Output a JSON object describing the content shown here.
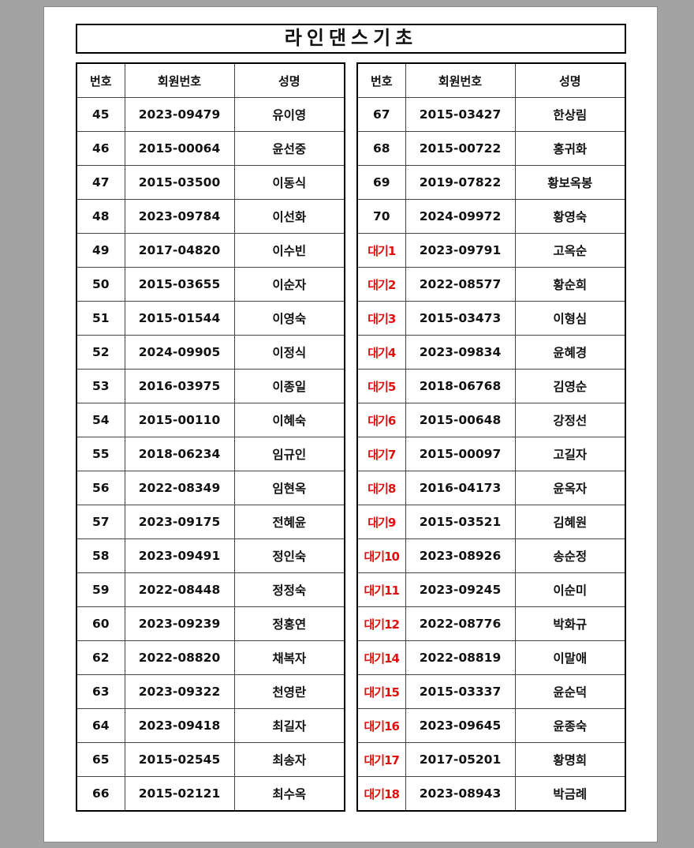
{
  "title": "라인댄스기초",
  "headers": [
    "번호",
    "회원번호",
    "성명"
  ],
  "colors": {
    "waitlist": "#e01010",
    "text": "#111111"
  },
  "left_table": [
    {
      "no": "45",
      "member_id": "2023-09479",
      "name": "유이영"
    },
    {
      "no": "46",
      "member_id": "2015-00064",
      "name": "윤선중"
    },
    {
      "no": "47",
      "member_id": "2015-03500",
      "name": "이동식"
    },
    {
      "no": "48",
      "member_id": "2023-09784",
      "name": "이선화"
    },
    {
      "no": "49",
      "member_id": "2017-04820",
      "name": "이수빈"
    },
    {
      "no": "50",
      "member_id": "2015-03655",
      "name": "이순자"
    },
    {
      "no": "51",
      "member_id": "2015-01544",
      "name": "이영숙"
    },
    {
      "no": "52",
      "member_id": "2024-09905",
      "name": "이정식"
    },
    {
      "no": "53",
      "member_id": "2016-03975",
      "name": "이종일"
    },
    {
      "no": "54",
      "member_id": "2015-00110",
      "name": "이혜숙"
    },
    {
      "no": "55",
      "member_id": "2018-06234",
      "name": "임규인"
    },
    {
      "no": "56",
      "member_id": "2022-08349",
      "name": "임현옥"
    },
    {
      "no": "57",
      "member_id": "2023-09175",
      "name": "전혜윤"
    },
    {
      "no": "58",
      "member_id": "2023-09491",
      "name": "정인숙"
    },
    {
      "no": "59",
      "member_id": "2022-08448",
      "name": "정정숙"
    },
    {
      "no": "60",
      "member_id": "2023-09239",
      "name": "정홍연"
    },
    {
      "no": "62",
      "member_id": "2022-08820",
      "name": "채복자"
    },
    {
      "no": "63",
      "member_id": "2023-09322",
      "name": "천영란"
    },
    {
      "no": "64",
      "member_id": "2023-09418",
      "name": "최길자"
    },
    {
      "no": "65",
      "member_id": "2015-02545",
      "name": "최송자"
    },
    {
      "no": "66",
      "member_id": "2015-02121",
      "name": "최수옥"
    }
  ],
  "right_table": [
    {
      "no": "67",
      "member_id": "2015-03427",
      "name": "한상림",
      "waitlist": false
    },
    {
      "no": "68",
      "member_id": "2015-00722",
      "name": "홍귀화",
      "waitlist": false
    },
    {
      "no": "69",
      "member_id": "2019-07822",
      "name": "황보옥봉",
      "waitlist": false
    },
    {
      "no": "70",
      "member_id": "2024-09972",
      "name": "황영숙",
      "waitlist": false
    },
    {
      "no": "대기1",
      "member_id": "2023-09791",
      "name": "고옥순",
      "waitlist": true
    },
    {
      "no": "대기2",
      "member_id": "2022-08577",
      "name": "황순희",
      "waitlist": true
    },
    {
      "no": "대기3",
      "member_id": "2015-03473",
      "name": "이형심",
      "waitlist": true
    },
    {
      "no": "대기4",
      "member_id": "2023-09834",
      "name": "윤혜경",
      "waitlist": true
    },
    {
      "no": "대기5",
      "member_id": "2018-06768",
      "name": "김영순",
      "waitlist": true
    },
    {
      "no": "대기6",
      "member_id": "2015-00648",
      "name": "강정선",
      "waitlist": true
    },
    {
      "no": "대기7",
      "member_id": "2015-00097",
      "name": "고길자",
      "waitlist": true
    },
    {
      "no": "대기8",
      "member_id": "2016-04173",
      "name": "윤옥자",
      "waitlist": true
    },
    {
      "no": "대기9",
      "member_id": "2015-03521",
      "name": "김혜원",
      "waitlist": true
    },
    {
      "no": "대기10",
      "member_id": "2023-08926",
      "name": "송순정",
      "waitlist": true
    },
    {
      "no": "대기11",
      "member_id": "2023-09245",
      "name": "이순미",
      "waitlist": true
    },
    {
      "no": "대기12",
      "member_id": "2022-08776",
      "name": "박화규",
      "waitlist": true
    },
    {
      "no": "대기14",
      "member_id": "2022-08819",
      "name": "이말애",
      "waitlist": true
    },
    {
      "no": "대기15",
      "member_id": "2015-03337",
      "name": "윤순덕",
      "waitlist": true
    },
    {
      "no": "대기16",
      "member_id": "2023-09645",
      "name": "윤종숙",
      "waitlist": true
    },
    {
      "no": "대기17",
      "member_id": "2017-05201",
      "name": "황명희",
      "waitlist": true
    },
    {
      "no": "대기18",
      "member_id": "2023-08943",
      "name": "박금례",
      "waitlist": true
    }
  ]
}
